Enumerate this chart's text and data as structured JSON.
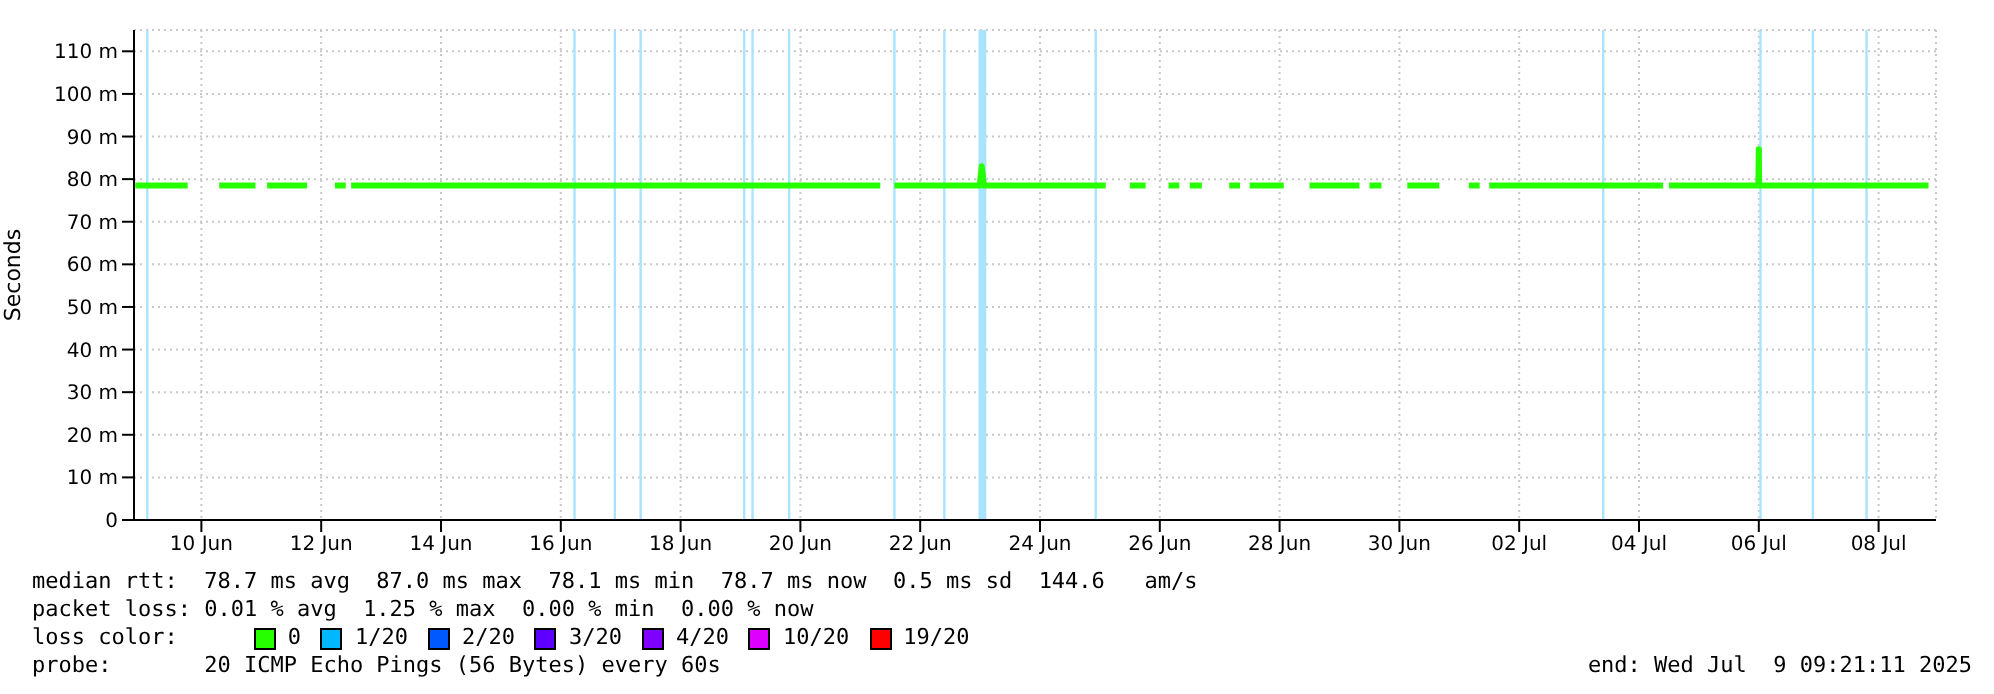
{
  "chart_data": {
    "type": "line",
    "ylabel": "Seconds",
    "legend_title": "loss color:",
    "legend": "bottom",
    "grid": true,
    "xlim": [
      "2025-06-08T21:00",
      "2025-07-08T23:00"
    ],
    "xticks": [
      {
        "value": "2025-06-10",
        "label": "10 Jun"
      },
      {
        "value": "2025-06-12",
        "label": "12 Jun"
      },
      {
        "value": "2025-06-14",
        "label": "14 Jun"
      },
      {
        "value": "2025-06-16",
        "label": "16 Jun"
      },
      {
        "value": "2025-06-18",
        "label": "18 Jun"
      },
      {
        "value": "2025-06-20",
        "label": "20 Jun"
      },
      {
        "value": "2025-06-22",
        "label": "22 Jun"
      },
      {
        "value": "2025-06-24",
        "label": "24 Jun"
      },
      {
        "value": "2025-06-26",
        "label": "26 Jun"
      },
      {
        "value": "2025-06-28",
        "label": "28 Jun"
      },
      {
        "value": "2025-06-30",
        "label": "30 Jun"
      },
      {
        "value": "2025-07-02",
        "label": "02 Jul"
      },
      {
        "value": "2025-07-04",
        "label": "04 Jul"
      },
      {
        "value": "2025-07-06",
        "label": "06 Jul"
      },
      {
        "value": "2025-07-08",
        "label": "08 Jul"
      }
    ],
    "ylim": [
      0,
      115
    ],
    "yticks": [
      0,
      {
        "value": 10,
        "label": "10 m"
      },
      {
        "value": 20,
        "label": "20 m"
      },
      {
        "value": 30,
        "label": "30 m"
      },
      {
        "value": 40,
        "label": "40 m"
      },
      {
        "value": 50,
        "label": "50 m"
      },
      {
        "value": 60,
        "label": "60 m"
      },
      {
        "value": 70,
        "label": "70 m"
      },
      {
        "value": 80,
        "label": "80 m"
      },
      {
        "value": 90,
        "label": "90 m"
      },
      {
        "value": 100,
        "label": "100 m"
      },
      {
        "value": 110,
        "label": "110 m"
      }
    ],
    "x": [
      "2025-06-08T21:30",
      "2025-06-09T18:30",
      "2025-06-10T00:00",
      "2025-06-10T07:10",
      "2025-06-10T21:40",
      "2025-06-11T00:00",
      "2025-06-11T02:20",
      "2025-06-11T18:20",
      "2025-06-12T00:00",
      "2025-06-12T05:30",
      "2025-06-12T09:50",
      "2025-06-12T10:40",
      "2025-06-12T12:00",
      "2025-06-15T00:00",
      "2025-06-18T00:00",
      "2025-06-21T08:00",
      "2025-06-21T10:00",
      "2025-06-21T13:40",
      "2025-06-22T23:50",
      "2025-06-23T00:40",
      "2025-06-23T01:30",
      "2025-06-25T02:20",
      "2025-06-25T06:00",
      "2025-06-25T12:00",
      "2025-06-25T18:20",
      "2025-06-26T00:00",
      "2025-06-26T03:30",
      "2025-06-26T07:50",
      "2025-06-26T09:00",
      "2025-06-26T12:00",
      "2025-06-26T16:50",
      "2025-06-27T00:00",
      "2025-06-27T03:50",
      "2025-06-27T08:10",
      "2025-06-27T09:00",
      "2025-06-27T12:00",
      "2025-06-28T01:40",
      "2025-06-28T06:00",
      "2025-06-28T12:00",
      "2025-06-29T08:00",
      "2025-06-29T10:00",
      "2025-06-29T12:00",
      "2025-06-29T16:50",
      "2025-06-30T00:00",
      "2025-06-30T03:10",
      "2025-06-30T16:00",
      "2025-07-01T00:00",
      "2025-07-01T03:50",
      "2025-07-01T08:10",
      "2025-07-01T09:00",
      "2025-07-01T12:00",
      "2025-07-04T09:40",
      "2025-07-04T11:00",
      "2025-07-04T12:00",
      "2025-07-05T23:50",
      "2025-07-06T00:00",
      "2025-07-06T00:10",
      "2025-07-08T20:00"
    ],
    "series": [
      {
        "name": "0",
        "color": "#26ff00",
        "values": [
          78.5,
          78.5,
          null,
          78.5,
          78.5,
          null,
          78.5,
          78.5,
          null,
          78.5,
          78.5,
          null,
          78.5,
          78.5,
          78.5,
          78.5,
          null,
          78.5,
          78.5,
          83,
          78.5,
          78.5,
          null,
          78.5,
          78.5,
          null,
          78.5,
          78.5,
          null,
          78.5,
          78.5,
          null,
          78.5,
          78.5,
          null,
          78.5,
          78.5,
          null,
          78.5,
          78.5,
          null,
          78.5,
          78.5,
          null,
          78.5,
          78.5,
          null,
          78.5,
          78.5,
          null,
          78.5,
          78.5,
          null,
          78.5,
          78.5,
          87,
          78.5,
          78.5
        ]
      }
    ],
    "ref_lines": [
      {
        "axis": "x",
        "value": "2025-06-09T02:20",
        "color": "#a8e4ff"
      },
      {
        "axis": "x",
        "value": "2025-06-16T05:30",
        "color": "#a8e4ff"
      },
      {
        "axis": "x",
        "value": "2025-06-16T21:40",
        "color": "#a8e4ff"
      },
      {
        "axis": "x",
        "value": "2025-06-17T08:00",
        "color": "#a8e4ff"
      },
      {
        "axis": "x",
        "value": "2025-06-19T01:30",
        "color": "#a8e4ff"
      },
      {
        "axis": "x",
        "value": "2025-06-19T04:50",
        "color": "#a8e4ff"
      },
      {
        "axis": "x",
        "value": "2025-06-19T19:30",
        "color": "#a8e4ff"
      },
      {
        "axis": "x",
        "value": "2025-06-21T13:40",
        "color": "#a8e4ff"
      },
      {
        "axis": "x",
        "value": "2025-06-22T09:40",
        "color": "#a8e4ff"
      },
      {
        "axis": "x",
        "value": "2025-06-24T22:20",
        "color": "#a8e4ff"
      },
      {
        "axis": "x",
        "value": "2025-07-03T09:40",
        "color": "#a8e4ff"
      },
      {
        "axis": "x",
        "value": "2025-07-06T00:40",
        "color": "#a8e4ff"
      },
      {
        "axis": "x",
        "value": "2025-07-06T21:40",
        "color": "#a8e4ff"
      },
      {
        "axis": "x",
        "value": "2025-07-07T19:10",
        "color": "#a8e4ff"
      }
    ],
    "bands": [
      {
        "axis": "x",
        "from": "2025-06-22T23:20",
        "to": "2025-06-23T02:30",
        "color": "#a8e4ff"
      }
    ],
    "annotations": [
      "median rtt:  78.7 ms avg  87.0 ms max  78.1 ms min  78.7 ms now  0.5 ms sd  144.6   am/s",
      "packet loss: 0.01 % avg  1.25 % max  0.00 % min  0.00 % now",
      "probe:       20 ICMP Echo Pings (56 Bytes) every 60s",
      "end: Wed Jul  9 09:21:11 2025",
      "1/20",
      "2/20",
      "3/20",
      "4/20",
      "10/20",
      "19/20"
    ]
  }
}
